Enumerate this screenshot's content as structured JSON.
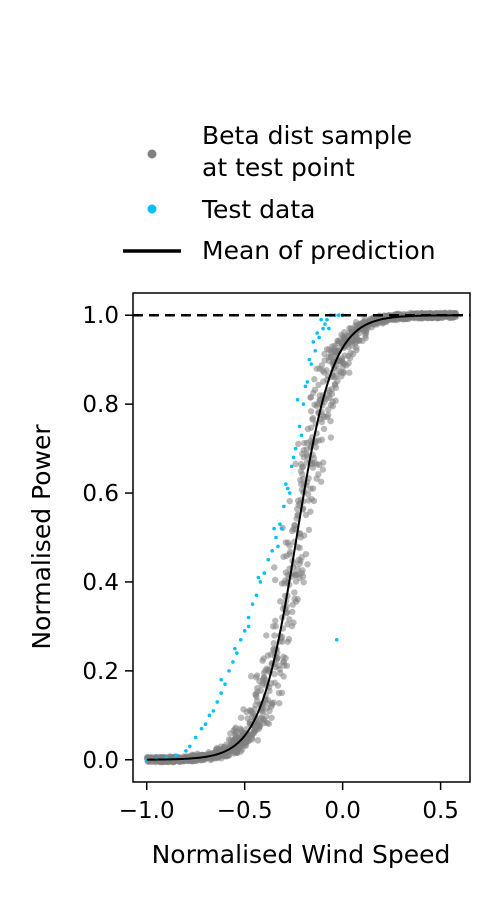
{
  "chart_data": {
    "type": "scatter",
    "title": "",
    "xlabel": "Normalised Wind Speed",
    "ylabel": "Normalised Power",
    "xlim": [
      -1.07,
      0.65
    ],
    "ylim": [
      -0.05,
      1.05
    ],
    "xticks": [
      -1.0,
      -0.5,
      0.0,
      0.5
    ],
    "xtick_labels": [
      "−1.0",
      "−0.5",
      "0.0",
      "0.5"
    ],
    "yticks": [
      0.0,
      0.2,
      0.4,
      0.6,
      0.8,
      1.0
    ],
    "ytick_labels": [
      "0.0",
      "0.2",
      "0.4",
      "0.6",
      "0.8",
      "1.0"
    ],
    "grid": false,
    "legend_position": "above plot",
    "reference_line": {
      "y": 1.0,
      "style": "dashed",
      "color": "#000000"
    },
    "series": [
      {
        "name": "Beta dist sample\nat test point",
        "kind": "scatter-band",
        "color": "#808080",
        "x_range": [
          -1.0,
          0.58
        ],
        "center_curve": "logistic",
        "logistic_center_x": -0.235,
        "logistic_slope": 10.8,
        "band_half_width_x": 0.07
      },
      {
        "name": "Test data",
        "kind": "scatter",
        "color": "#00BFFF",
        "points": [
          [
            -1.0,
            0.0
          ],
          [
            -0.95,
            0.002
          ],
          [
            -0.9,
            0.005
          ],
          [
            -0.85,
            0.01
          ],
          [
            -0.8,
            0.02
          ],
          [
            -0.78,
            0.03
          ],
          [
            -0.75,
            0.05
          ],
          [
            -0.72,
            0.07
          ],
          [
            -0.7,
            0.08
          ],
          [
            -0.68,
            0.1
          ],
          [
            -0.66,
            0.11
          ],
          [
            -0.64,
            0.13
          ],
          [
            -0.62,
            0.15
          ],
          [
            -0.6,
            0.17
          ],
          [
            -0.58,
            0.2
          ],
          [
            -0.56,
            0.22
          ],
          [
            -0.54,
            0.24
          ],
          [
            -0.52,
            0.27
          ],
          [
            -0.5,
            0.29
          ],
          [
            -0.48,
            0.32
          ],
          [
            -0.46,
            0.35
          ],
          [
            -0.44,
            0.37
          ],
          [
            -0.42,
            0.4
          ],
          [
            -0.4,
            0.42
          ],
          [
            -0.38,
            0.45
          ],
          [
            -0.36,
            0.47
          ],
          [
            -0.34,
            0.5
          ],
          [
            -0.32,
            0.53
          ],
          [
            -0.3,
            0.57
          ],
          [
            -0.28,
            0.61
          ],
          [
            -0.26,
            0.66
          ],
          [
            -0.24,
            0.7
          ],
          [
            -0.22,
            0.75
          ],
          [
            -0.2,
            0.8
          ],
          [
            -0.18,
            0.85
          ],
          [
            -0.16,
            0.89
          ],
          [
            -0.14,
            0.92
          ],
          [
            -0.12,
            0.95
          ],
          [
            -0.1,
            0.97
          ],
          [
            -0.08,
            0.99
          ],
          [
            -0.06,
            1.0
          ],
          [
            -0.04,
            1.0
          ],
          [
            -0.02,
            1.0
          ],
          [
            0.0,
            1.0
          ],
          [
            -0.62,
            0.18
          ],
          [
            -0.55,
            0.25
          ],
          [
            -0.48,
            0.3
          ],
          [
            -0.43,
            0.41
          ],
          [
            -0.35,
            0.52
          ],
          [
            -0.33,
            0.48
          ],
          [
            -0.29,
            0.62
          ],
          [
            -0.25,
            0.68
          ],
          [
            -0.21,
            0.73
          ],
          [
            -0.17,
            0.9
          ],
          [
            -0.13,
            0.96
          ],
          [
            -0.11,
            0.99
          ],
          [
            -0.09,
            0.98
          ],
          [
            -0.07,
            0.97
          ],
          [
            -0.31,
            0.52
          ],
          [
            -0.27,
            0.6
          ],
          [
            -0.23,
            0.81
          ],
          [
            -0.19,
            0.84
          ],
          [
            -0.15,
            0.94
          ],
          [
            -0.03,
            0.27
          ]
        ]
      },
      {
        "name": "Mean of prediction",
        "kind": "line",
        "color": "#000000",
        "x_range": [
          -1.0,
          0.58
        ],
        "curve": "logistic",
        "logistic_center_x": -0.235,
        "logistic_slope": 10.8
      }
    ]
  }
}
